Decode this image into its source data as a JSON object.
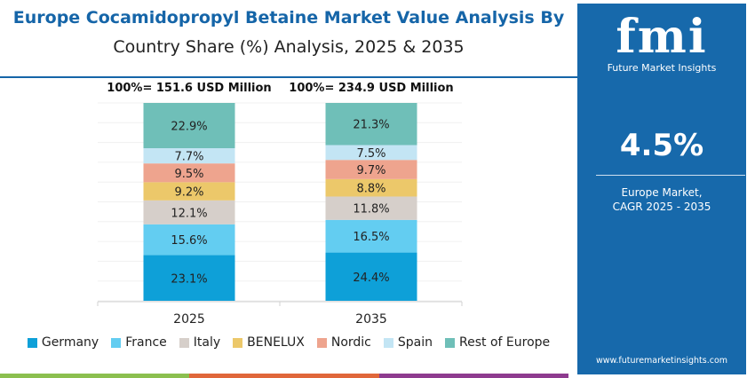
{
  "title": {
    "line1": "Europe Cocamidopropyl Betaine Market Value Analysis By",
    "line2": "Country Share (%) Analysis, 2025 & 2035"
  },
  "chart_data": {
    "type": "bar",
    "stacked": true,
    "categories": [
      "2025",
      "2035"
    ],
    "totals": [
      "100%= 151.6 USD Million",
      "100%= 234.9 USD Million"
    ],
    "series": [
      {
        "name": "Germany",
        "color": "#0ea0d8",
        "values": [
          23.1,
          24.4
        ]
      },
      {
        "name": "France",
        "color": "#63cdf1",
        "values": [
          15.6,
          16.5
        ]
      },
      {
        "name": "Italy",
        "color": "#d6cfca",
        "values": [
          12.1,
          11.8
        ]
      },
      {
        "name": "BENELUX",
        "color": "#ecc86a",
        "values": [
          9.2,
          8.8
        ]
      },
      {
        "name": "Nordic",
        "color": "#eea48e",
        "values": [
          9.5,
          9.7
        ]
      },
      {
        "name": "Spain",
        "color": "#c3e5f4",
        "values": [
          7.7,
          7.5
        ]
      },
      {
        "name": "Rest of Europe",
        "color": "#6fbfb8",
        "values": [
          22.9,
          21.3
        ]
      }
    ],
    "value_labels": [
      [
        "23.1%",
        "15.6%",
        "12.1%",
        "9.2%",
        "9.5%",
        "7.7%",
        "22.9%"
      ],
      [
        "24.4%",
        "16.5%",
        "11.8%",
        "8.8%",
        "9.7%",
        "7.5%",
        "21.3%"
      ]
    ],
    "ylim": [
      0,
      100
    ],
    "grid": true,
    "legend": "bottom"
  },
  "panel": {
    "logo": "fmi",
    "logo_sub": "Future Market Insights",
    "cagr": "4.5%",
    "desc1": "Europe Market,",
    "desc2": "CAGR 2025 - 2035",
    "url": "www.futuremarketinsights.com",
    "color": "#1769ab"
  },
  "bottom_bar_colors": [
    "#8bbf4f",
    "#e0673a",
    "#8e3b8f"
  ]
}
